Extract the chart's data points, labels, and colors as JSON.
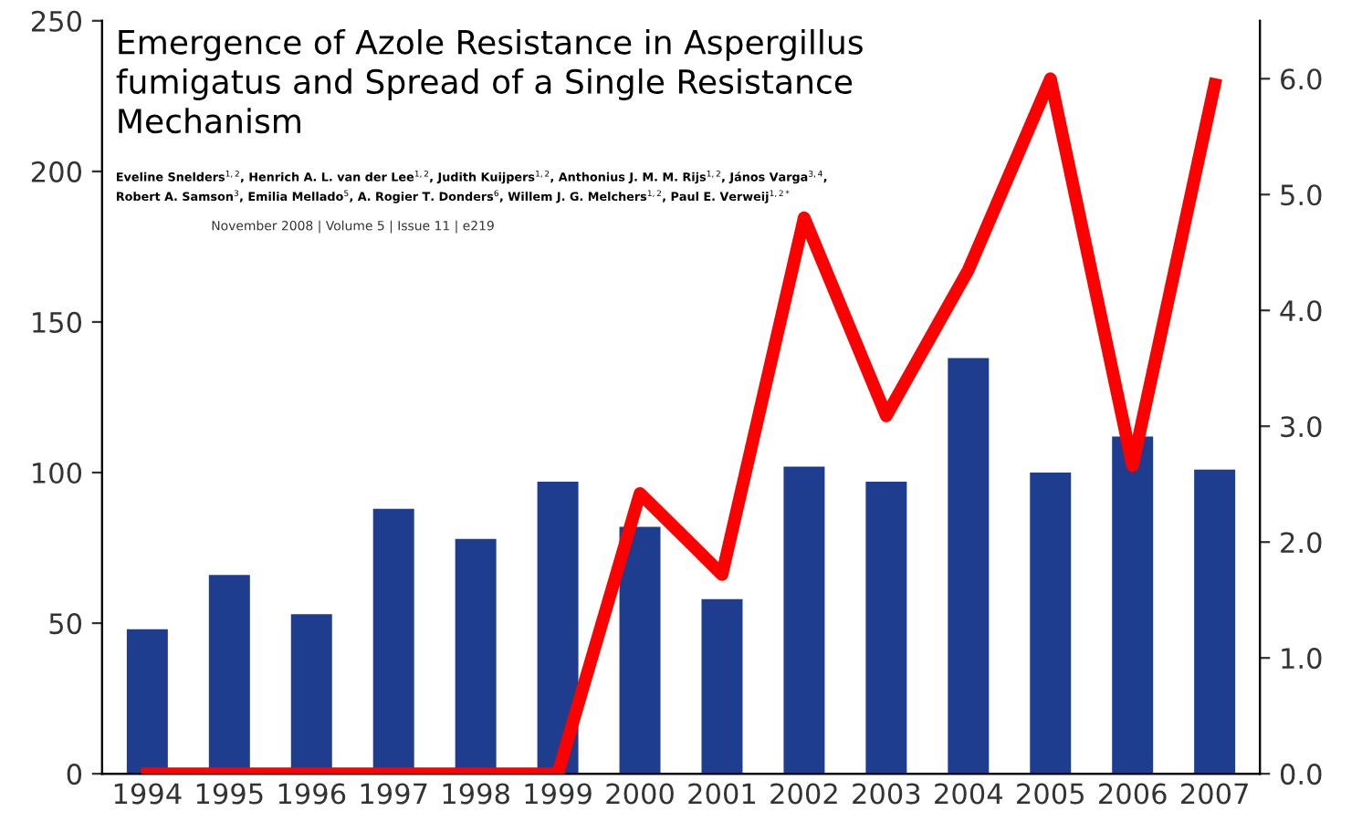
{
  "chart_data": {
    "type": "bar",
    "title": "Emergence of Azole Resistance in Aspergillus\nfumigatus and Spread of a Single Resistance\nMechanism",
    "annotations": [
      "Eveline Snelders$^{1,2}$, Henrich A. L. van der Lee$^{1,2}$, Judith Kuijpers$^{1,2}$, Anthonius J. M. M. Rijs$^{1,2}$, János Varga$^{3,4}$,\nRobert A. Samson$^{3}$, Emilia Mellado$^{5}$, A. Rogier T. Donders$^{6}$, Willem J. G. Melchers$^{1,2}$, Paul E. Verweij$^{1,2*}$",
      "November 2008 | Volume 5 | Issue 11 | e219"
    ],
    "categories": [
      "1994",
      "1995",
      "1996",
      "1997",
      "1998",
      "1999",
      "2000",
      "2001",
      "2002",
      "2003",
      "2004",
      "2005",
      "2006",
      "2007"
    ],
    "series": [
      {
        "color": "#1f3d8f",
        "values": [
          48,
          66,
          53,
          88,
          78,
          97,
          82,
          58,
          102,
          97,
          138,
          100,
          112,
          101
        ]
      },
      {
        "type": "line",
        "axis": "y2",
        "color": "#ff0000",
        "values": [
          0,
          0,
          0,
          0,
          0,
          0,
          2.42,
          1.72,
          4.8,
          3.09,
          4.35,
          6.0,
          2.66,
          5.95
        ]
      }
    ],
    "ylim": [
      0,
      250
    ],
    "yticks": [
      0,
      50,
      100,
      150,
      200,
      250
    ],
    "y2lim": [
      0,
      6.5
    ],
    "y2ticks": [
      {
        "value": 0,
        "label": "0.0"
      },
      {
        "value": 1,
        "label": "1.0"
      },
      {
        "value": 2,
        "label": "2.0"
      },
      {
        "value": 3,
        "label": "3.0"
      },
      {
        "value": 4,
        "label": "4.0"
      },
      {
        "value": 5,
        "label": "5.0"
      },
      {
        "value": 6,
        "label": "6.0"
      }
    ],
    "grid": false,
    "legend": false
  }
}
